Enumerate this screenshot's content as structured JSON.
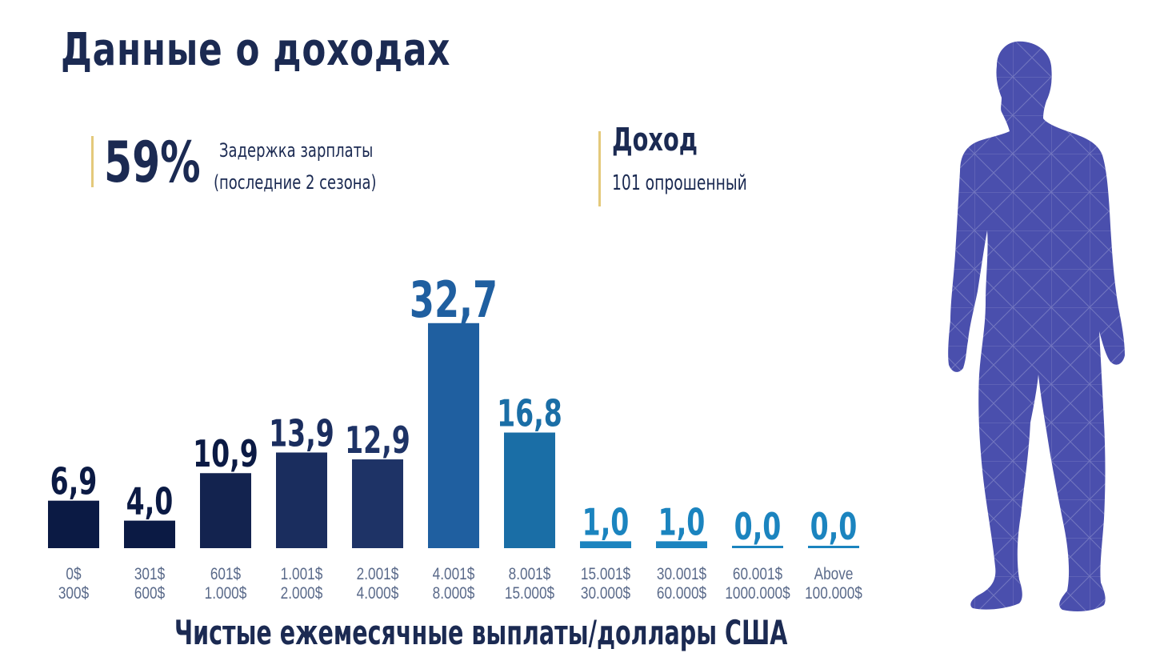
{
  "header": {
    "title": "Данные о доходах"
  },
  "stat_delay": {
    "value": "59%",
    "line1": "Задержка зарплаты",
    "line2": "(последние 2 сезона)"
  },
  "stat_income": {
    "title": "Доход",
    "subtitle": "101 опрошенный"
  },
  "colors": {
    "dark_navy": "#0b1a44",
    "navy": "#1a2d5e",
    "blue": "#1f5fa0",
    "teal_blue": "#0f6fa3",
    "light_blue": "#1b84bf",
    "figure": "#4a4fad",
    "accent_line": "#e4c97b"
  },
  "chart_data": {
    "type": "bar",
    "xlabel": "Чистые ежемесячные выплаты/доллары США",
    "ylim": [
      0,
      35
    ],
    "categories": [
      [
        "0$",
        "300$"
      ],
      [
        "301$",
        "600$"
      ],
      [
        "601$",
        "1.000$"
      ],
      [
        "1.001$",
        "2.000$"
      ],
      [
        "2.001$",
        "4.000$"
      ],
      [
        "4.001$",
        "8.000$"
      ],
      [
        "8.001$",
        "15.000$"
      ],
      [
        "15.001$",
        "30.000$"
      ],
      [
        "30.001$",
        "60.000$"
      ],
      [
        "60.001$",
        "1000.000$"
      ],
      [
        "Above",
        "100.000$"
      ]
    ],
    "values": [
      6.9,
      4.0,
      10.9,
      13.9,
      12.9,
      32.7,
      16.8,
      1.0,
      1.0,
      0.0,
      0.0
    ],
    "value_labels": [
      "6,9",
      "4,0",
      "10,9",
      "13,9",
      "12,9",
      "32,7",
      "16,8",
      "1,0",
      "1,0",
      "0,0",
      "0,0"
    ],
    "bar_colors": [
      "#0b1a44",
      "#0b1a44",
      "#13234f",
      "#1a2d5e",
      "#1e3366",
      "#1f5fa0",
      "#1a6ea6",
      "#1b84bf",
      "#1b84bf",
      "#1b84bf",
      "#1b84bf"
    ],
    "label_colors": [
      "#0b1a44",
      "#0b1a44",
      "#0b1a44",
      "#1a2d5e",
      "#1e3366",
      "#1f5fa0",
      "#1a6ea6",
      "#1b84bf",
      "#1b84bf",
      "#1b84bf",
      "#1b84bf"
    ]
  }
}
